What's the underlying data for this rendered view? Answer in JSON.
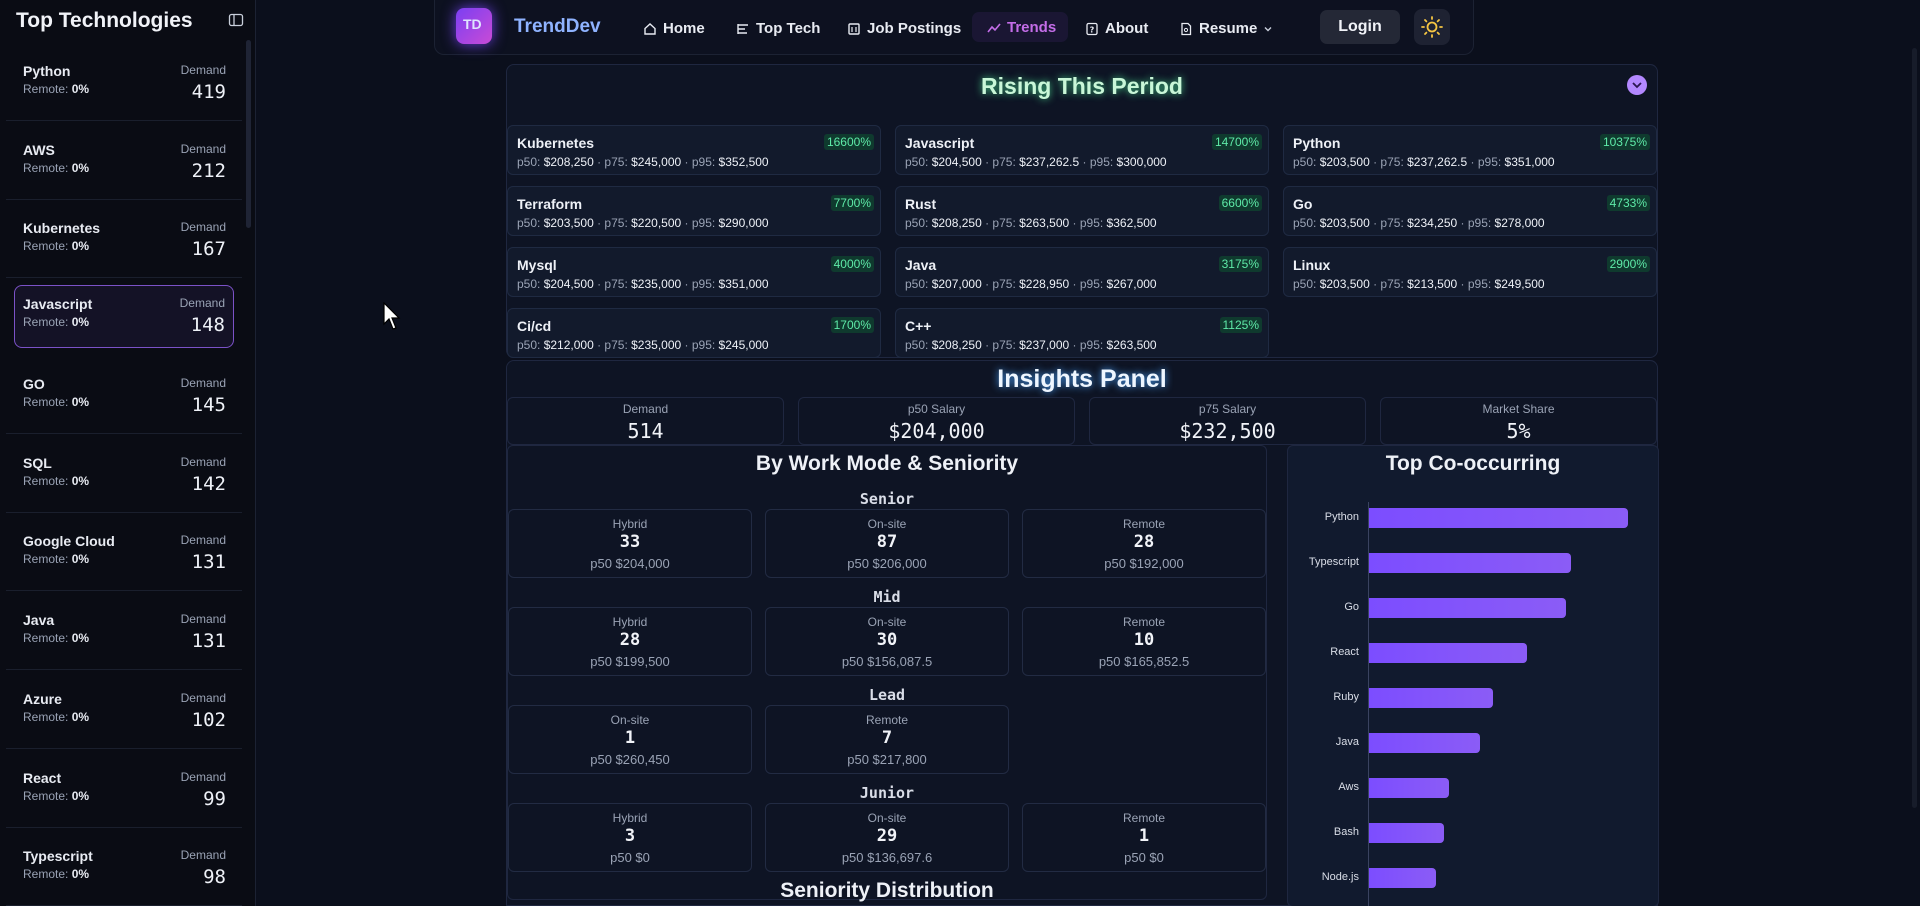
{
  "sidebar": {
    "title": "Top Technologies",
    "remote_label": "Remote:",
    "demand_label": "Demand",
    "items": [
      {
        "name": "Python",
        "remote": "0%",
        "demand": "419"
      },
      {
        "name": "AWS",
        "remote": "0%",
        "demand": "212"
      },
      {
        "name": "Kubernetes",
        "remote": "0%",
        "demand": "167"
      },
      {
        "name": "Javascript",
        "remote": "0%",
        "demand": "148"
      },
      {
        "name": "GO",
        "remote": "0%",
        "demand": "145"
      },
      {
        "name": "SQL",
        "remote": "0%",
        "demand": "142"
      },
      {
        "name": "Google Cloud",
        "remote": "0%",
        "demand": "131"
      },
      {
        "name": "Java",
        "remote": "0%",
        "demand": "131"
      },
      {
        "name": "Azure",
        "remote": "0%",
        "demand": "102"
      },
      {
        "name": "React",
        "remote": "0%",
        "demand": "99"
      },
      {
        "name": "Typescript",
        "remote": "0%",
        "demand": "98"
      }
    ],
    "active_index": 3
  },
  "nav": {
    "logo_text": "TD",
    "brand": "TrendDev",
    "items": [
      "Home",
      "Top Tech",
      "Job Postings",
      "Trends",
      "About",
      "Resume"
    ],
    "login": "Login"
  },
  "rising": {
    "title": "Rising This Period",
    "cards": [
      {
        "name": "Kubernetes",
        "pct": "16600%",
        "p50": "$208,250",
        "p75": "$245,000",
        "p95": "$352,500"
      },
      {
        "name": "Javascript",
        "pct": "14700%",
        "p50": "$204,500",
        "p75": "$237,262.5",
        "p95": "$300,000"
      },
      {
        "name": "Python",
        "pct": "10375%",
        "p50": "$203,500",
        "p75": "$237,262.5",
        "p95": "$351,000"
      },
      {
        "name": "Terraform",
        "pct": "7700%",
        "p50": "$203,500",
        "p75": "$220,500",
        "p95": "$290,000"
      },
      {
        "name": "Rust",
        "pct": "6600%",
        "p50": "$208,250",
        "p75": "$263,500",
        "p95": "$362,500"
      },
      {
        "name": "Go",
        "pct": "4733%",
        "p50": "$203,500",
        "p75": "$234,250",
        "p95": "$278,000"
      },
      {
        "name": "Mysql",
        "pct": "4000%",
        "p50": "$204,500",
        "p75": "$235,000",
        "p95": "$351,000"
      },
      {
        "name": "Java",
        "pct": "3175%",
        "p50": "$207,000",
        "p75": "$228,950",
        "p95": "$267,000"
      },
      {
        "name": "Linux",
        "pct": "2900%",
        "p50": "$203,500",
        "p75": "$213,500",
        "p95": "$249,500"
      },
      {
        "name": "Ci/cd",
        "pct": "1700%",
        "p50": "$212,000",
        "p75": "$235,000",
        "p95": "$245,000"
      },
      {
        "name": "C++",
        "pct": "1125%",
        "p50": "$208,250",
        "p75": "$237,000",
        "p95": "$263,500"
      }
    ]
  },
  "insights": {
    "title": "Insights Panel",
    "kpis": [
      {
        "label": "Demand",
        "value": "514"
      },
      {
        "label": "p50 Salary",
        "value": "$204,000"
      },
      {
        "label": "p75 Salary",
        "value": "$232,500"
      },
      {
        "label": "Market Share",
        "value": "5%"
      }
    ],
    "work_mode_title": "By Work Mode & Seniority",
    "groups": [
      {
        "label": "Senior",
        "cards": [
          {
            "mode": "Hybrid",
            "count": "33",
            "p50": "p50 $204,000"
          },
          {
            "mode": "On-site",
            "count": "87",
            "p50": "p50 $206,000"
          },
          {
            "mode": "Remote",
            "count": "28",
            "p50": "p50 $192,000"
          }
        ]
      },
      {
        "label": "Mid",
        "cards": [
          {
            "mode": "Hybrid",
            "count": "28",
            "p50": "p50 $199,500"
          },
          {
            "mode": "On-site",
            "count": "30",
            "p50": "p50 $156,087.5"
          },
          {
            "mode": "Remote",
            "count": "10",
            "p50": "p50 $165,852.5"
          }
        ]
      },
      {
        "label": "Lead",
        "cards": [
          {
            "mode": "On-site",
            "count": "1",
            "p50": "p50 $260,450"
          },
          {
            "mode": "Remote",
            "count": "7",
            "p50": "p50 $217,800"
          }
        ]
      },
      {
        "label": "Junior",
        "cards": [
          {
            "mode": "Hybrid",
            "count": "3",
            "p50": "p50 $0"
          },
          {
            "mode": "On-site",
            "count": "29",
            "p50": "p50 $136,697.6"
          },
          {
            "mode": "Remote",
            "count": "1",
            "p50": "p50 $0"
          }
        ]
      }
    ],
    "seniority_title": "Seniority Distribution"
  },
  "chart_data": {
    "type": "bar",
    "orientation": "horizontal",
    "title": "Top Co-occurring",
    "categories": [
      "Python",
      "Typescript",
      "Go",
      "React",
      "Ruby",
      "Java",
      "Aws",
      "Bash",
      "Node.js"
    ],
    "values": [
      100,
      78,
      76,
      61,
      48,
      43,
      31,
      29,
      26
    ],
    "bar_color": "#7c4dff"
  },
  "colors": {
    "background": "#0b0f1c",
    "accent": "#7c4dff",
    "positive": "#5eeaa8",
    "nav_active": "#c46de8"
  }
}
